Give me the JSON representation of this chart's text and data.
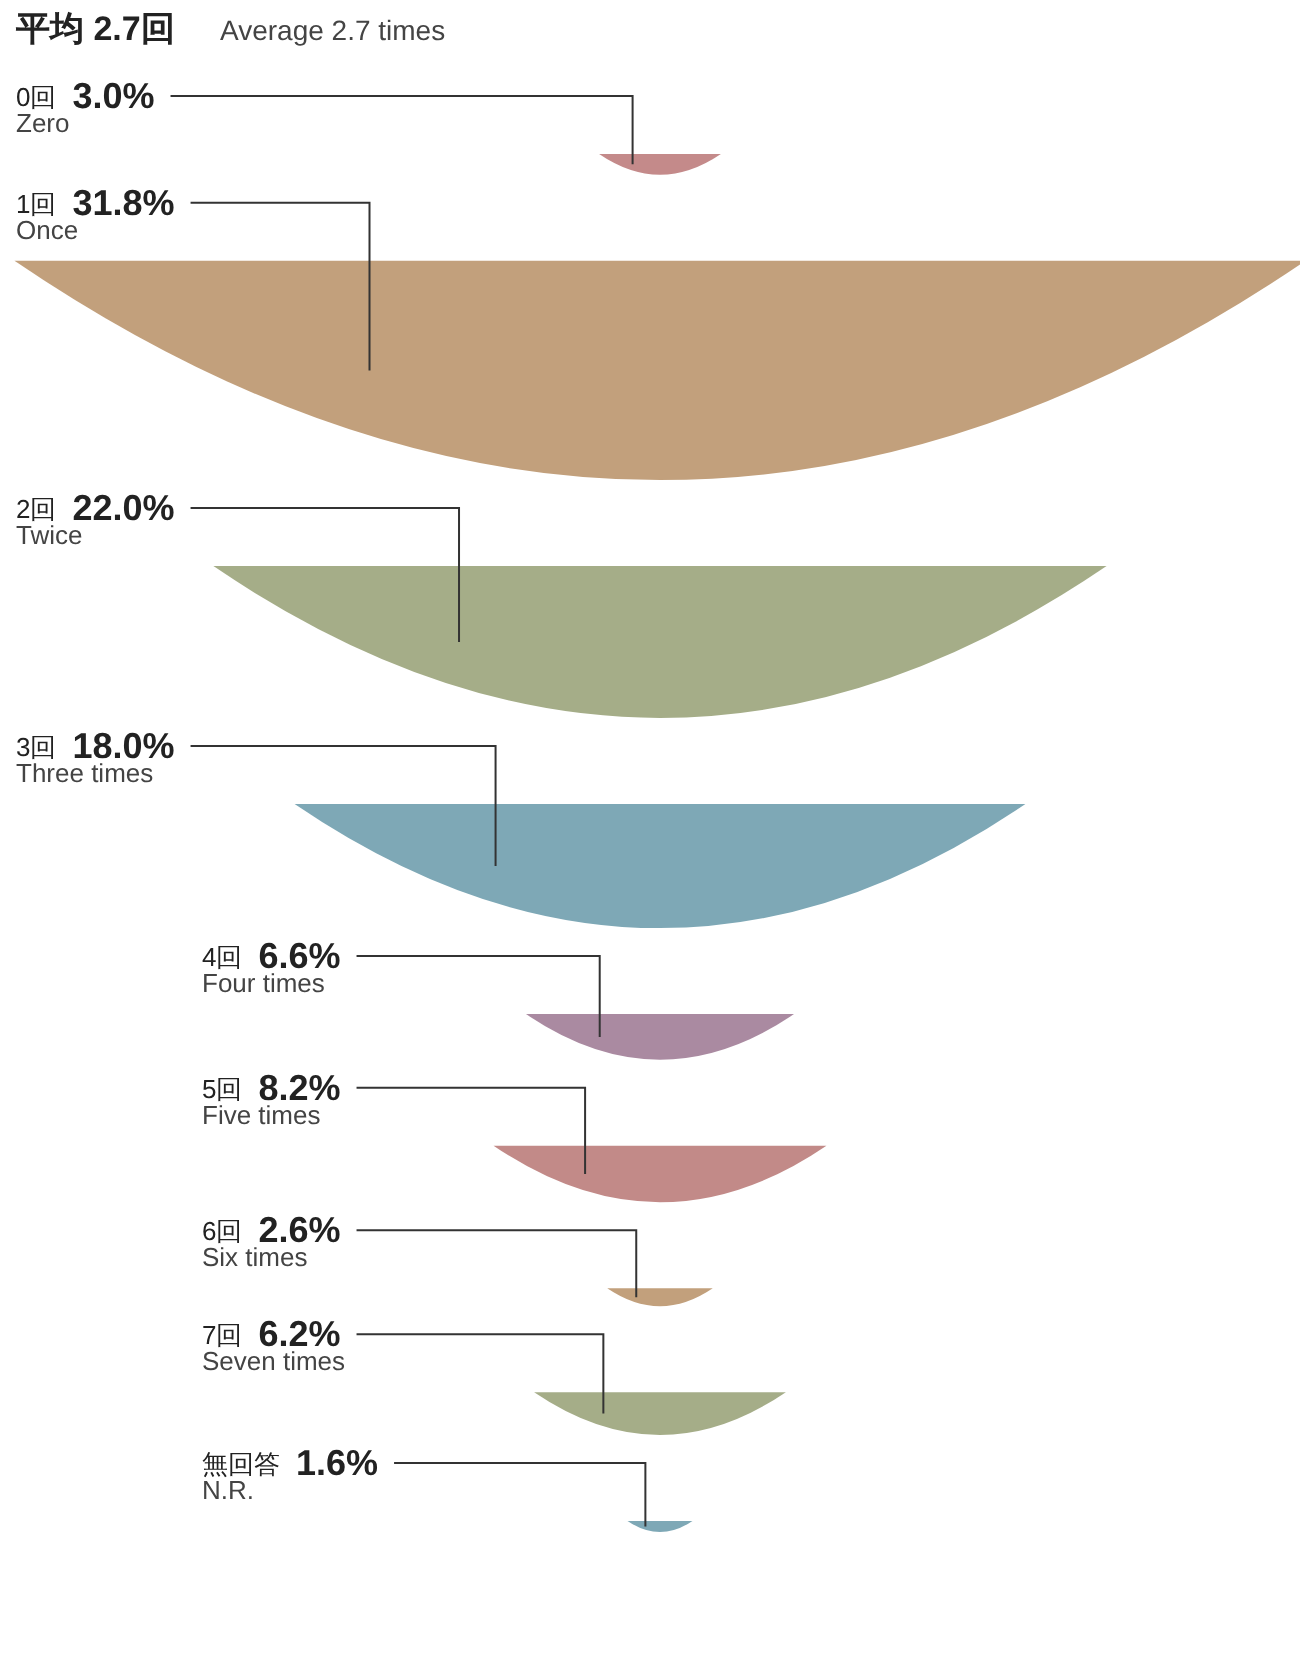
{
  "chart_data": {
    "type": "other",
    "title": "平均 2.7回",
    "subtitle": "Average 2.7 times",
    "categories": [
      "0回\nZero",
      "1回\nOnce",
      "2回\nTwice",
      "3回\nThree times",
      "4回\nFour times",
      "5回\nFive times",
      "6回\nSix times",
      "7回\nSeven times",
      "無回答\nN.R."
    ],
    "values": [
      3.0,
      31.8,
      22.0,
      18.0,
      6.6,
      8.2,
      2.6,
      6.2,
      1.6
    ],
    "value_labels": [
      "3.0%",
      "31.8%",
      "22.0%",
      "18.0%",
      "6.6%",
      "8.2%",
      "2.6%",
      "6.2%",
      "1.6%"
    ],
    "colors": [
      "#c48a8a",
      "#c2a07c",
      "#a5ad88",
      "#7ea8b6",
      "#aa8aa1",
      "#c28a88",
      "#c2a07c",
      "#a5ad88",
      "#7ea8b6"
    ]
  }
}
